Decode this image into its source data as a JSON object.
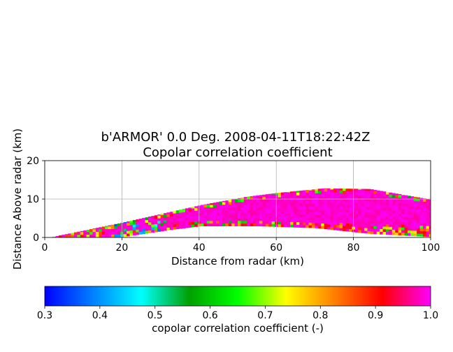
{
  "chart_data": [
    {
      "type": "heatmap",
      "title": "b'ARMOR' 0.0 Deg. 2008-04-11T18:22:42Z",
      "subtitle": "Copolar correlation coefficient",
      "xlabel": "Distance from radar (km)",
      "ylabel": "Distance Above radar  (km)",
      "xlim": [
        0,
        100
      ],
      "ylim": [
        0,
        20
      ],
      "x_ticks": [
        "0",
        "20",
        "40",
        "60",
        "80",
        "100"
      ],
      "y_ticks": [
        "0",
        "10",
        "20"
      ],
      "grid": true,
      "description_of_field": {
        "beam_top_km": [
          [
            2,
            0.2
          ],
          [
            20,
            3.9
          ],
          [
            40,
            8.4
          ],
          [
            52,
            10.6
          ],
          [
            60,
            11.6
          ],
          [
            72,
            12.8
          ],
          [
            84,
            12.6
          ],
          [
            100,
            9.8
          ]
        ],
        "beam_bottom_km": [
          [
            2,
            0.0
          ],
          [
            20,
            0.2
          ],
          [
            32,
            2.0
          ],
          [
            40,
            3.0
          ],
          [
            55,
            3.0
          ],
          [
            70,
            2.5
          ],
          [
            84,
            1.0
          ],
          [
            100,
            0.2
          ]
        ],
        "dominant_value_range": [
          0.95,
          1.0
        ]
      }
    },
    {
      "type": "colorbar",
      "label": "copolar correlation coefficient (-)",
      "range": [
        0.3,
        1.0
      ],
      "ticks": [
        "0.3",
        "0.4",
        "0.5",
        "0.6",
        "0.7",
        "0.8",
        "0.9",
        "1.0"
      ],
      "colors": [
        "#0000ff",
        "#0080ff",
        "#00ffff",
        "#00a000",
        "#00ff00",
        "#ffff00",
        "#ff8000",
        "#ff0000",
        "#ff00ff"
      ]
    }
  ]
}
